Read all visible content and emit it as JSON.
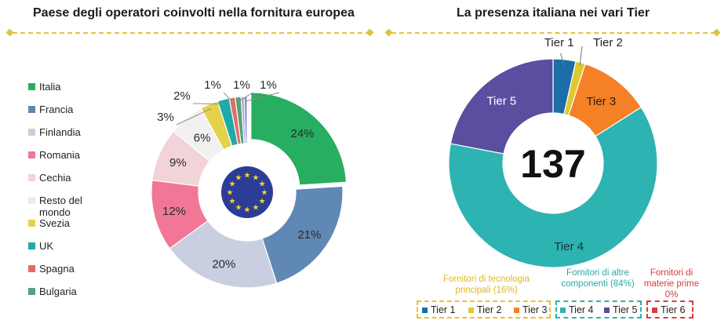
{
  "left_title": "Paese degli operatori coinvolti nella fornitura europea",
  "right_title": "La presenza italiana nei vari Tier",
  "chart_data": [
    {
      "type": "pie",
      "title": "Paese degli operatori coinvolti nella fornitura europea",
      "categories": [
        "Italia",
        "Francia",
        "Finlandia",
        "Romania",
        "Cechia",
        "Resto del mondo",
        "Svezia",
        "UK",
        "Spagna",
        "Bulgaria"
      ],
      "values": [
        24,
        21,
        20,
        12,
        9,
        6,
        3,
        2,
        1,
        1
      ],
      "labels": [
        "24%",
        "21%",
        "20%",
        "12%",
        "9%",
        "6%",
        "3%",
        "2%",
        "1%",
        "1%"
      ],
      "extra_slices": [
        {
          "value": 0.5,
          "label": "",
          "color": "#9fa5d8"
        },
        {
          "value": 0.5,
          "label": "1%",
          "color": "#8a82c8"
        }
      ],
      "colors": [
        "#27ae60",
        "#5f88b4",
        "#c9cfe0",
        "#f07896",
        "#f2d3d7",
        "#f1f1f1",
        "#e3d34a",
        "#1fa9a9",
        "#e46c67",
        "#59a07a"
      ],
      "legend_placement": "left"
    },
    {
      "type": "pie",
      "title": "La presenza italiana nei vari Tier",
      "categories": [
        "Tier 1",
        "Tier 2",
        "Tier 3",
        "Tier 4",
        "Tier 5",
        "Tier 6"
      ],
      "values": [
        3.5,
        1.5,
        11,
        62,
        22,
        0
      ],
      "colors": [
        "#1b6ea8",
        "#e0c92e",
        "#f58025",
        "#2db3b1",
        "#5a4ea0",
        "#d83c3c"
      ],
      "center_label": "137",
      "groups": [
        {
          "label": "Fornitori di tecnologia principali (16%)",
          "tiers": [
            "Tier 1",
            "Tier 2",
            "Tier 3"
          ],
          "color": "#e8c22f"
        },
        {
          "label": "Fornitori di altre componenti (84%)",
          "tiers": [
            "Tier 4",
            "Tier 5"
          ],
          "color": "#2db3b1"
        },
        {
          "label": "Fornitori di materie prime 0%",
          "tiers": [
            "Tier 6"
          ],
          "color": "#d83c3c"
        }
      ]
    }
  ]
}
